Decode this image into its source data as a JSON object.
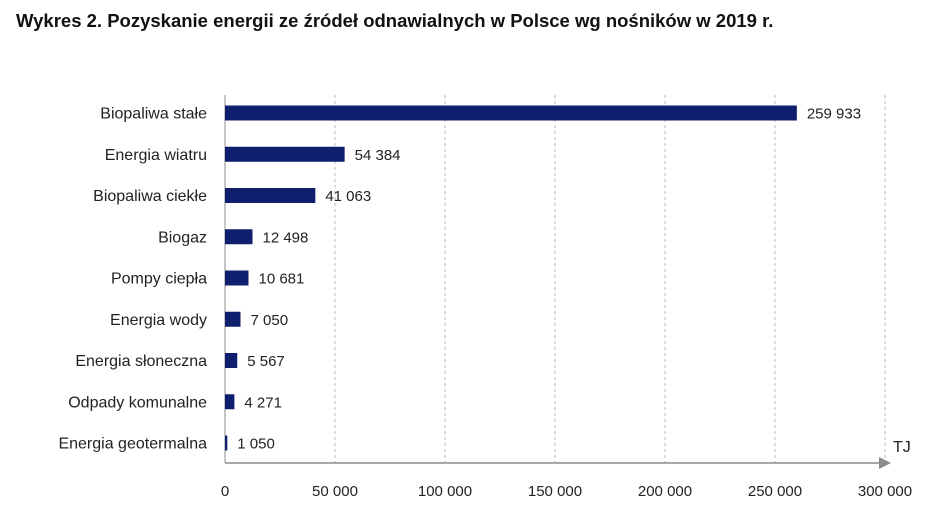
{
  "title": "Wykres 2. Pozyskanie energii ze źródeł odnawialnych w Polsce wg nośników w 2019 r.",
  "chart_data": {
    "type": "bar",
    "orientation": "horizontal",
    "categories": [
      "Biopaliwa stałe",
      "Energia wiatru",
      "Biopaliwa ciekłe",
      "Biogaz",
      "Pompy ciepła",
      "Energia wody",
      "Energia słoneczna",
      "Odpady komunalne",
      "Energia geotermalna"
    ],
    "values": [
      259933,
      54384,
      41063,
      12498,
      10681,
      7050,
      5567,
      4271,
      1050
    ],
    "value_labels": [
      "259 933",
      "54 384",
      "41 063",
      "12 498",
      "10 681",
      "7 050",
      "5 567",
      "4 271",
      "1 050"
    ],
    "xlim": [
      0,
      300000
    ],
    "xticks": [
      0,
      50000,
      100000,
      150000,
      200000,
      250000,
      300000
    ],
    "xtick_labels": [
      "0",
      "50 000",
      "100 000",
      "150 000",
      "200 000",
      "250 000",
      "300 000"
    ],
    "xlabel": "TJ",
    "grid": "vertical dashed",
    "legend": "none",
    "bar_color": "#0f1f6e",
    "grid_color": "#b8b8b8",
    "axis_color": "#8c8c8c"
  }
}
